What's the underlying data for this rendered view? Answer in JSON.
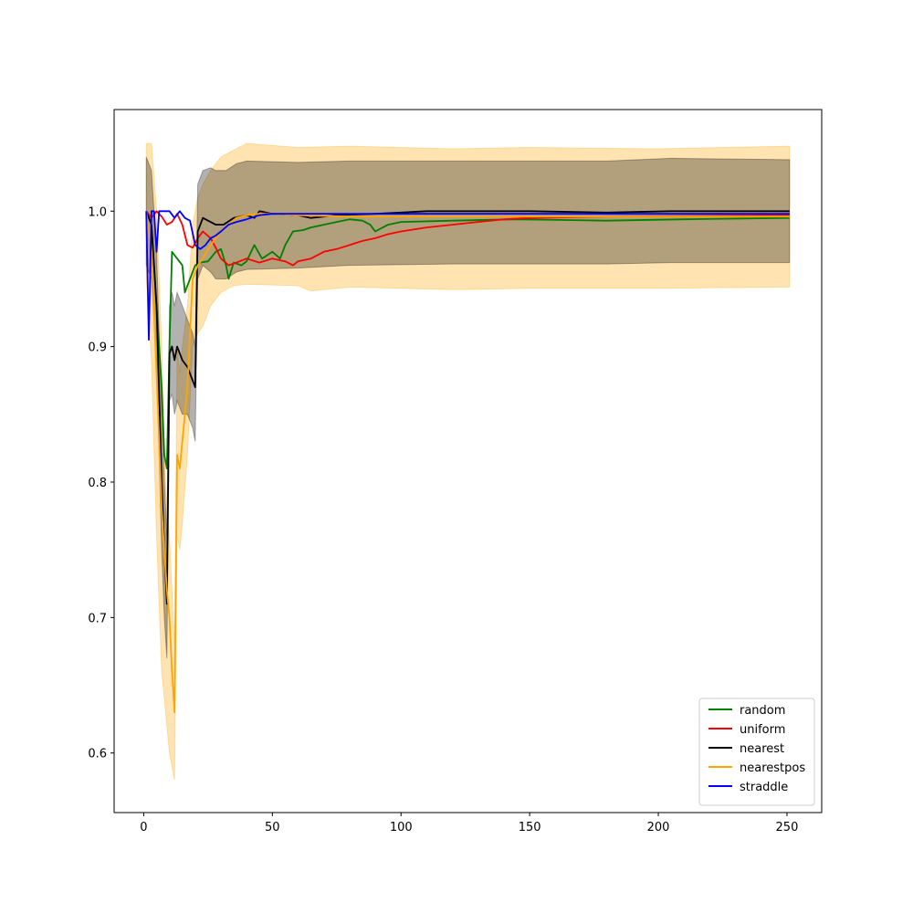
{
  "chart_data": {
    "type": "line",
    "title": "",
    "xlabel": "",
    "ylabel": "",
    "xlim": [
      -11.5,
      263.5
    ],
    "ylim": [
      0.556,
      1.075
    ],
    "x_ticks": [
      0,
      50,
      100,
      150,
      200,
      250
    ],
    "x_tick_labels": [
      "0",
      "50",
      "100",
      "150",
      "200",
      "250"
    ],
    "y_ticks": [
      0.6,
      0.7,
      0.8,
      0.9,
      1.0
    ],
    "y_tick_labels": [
      "0.6",
      "0.7",
      "0.8",
      "0.9",
      "1.0"
    ],
    "grid": false,
    "legend_position": "lower-right",
    "series": [
      {
        "name": "random",
        "color": "#008000",
        "points": [
          [
            1,
            1.0
          ],
          [
            3,
            0.99
          ],
          [
            5,
            0.93
          ],
          [
            7,
            0.87
          ],
          [
            8,
            0.82
          ],
          [
            9,
            0.81
          ],
          [
            10,
            0.9
          ],
          [
            11,
            0.97
          ],
          [
            13,
            0.965
          ],
          [
            15,
            0.96
          ],
          [
            16,
            0.94
          ],
          [
            18,
            0.95
          ],
          [
            20,
            0.96
          ],
          [
            22,
            0.962
          ],
          [
            25,
            0.963
          ],
          [
            28,
            0.97
          ],
          [
            30,
            0.972
          ],
          [
            32,
            0.96
          ],
          [
            33,
            0.95
          ],
          [
            35,
            0.962
          ],
          [
            38,
            0.96
          ],
          [
            40,
            0.963
          ],
          [
            43,
            0.975
          ],
          [
            46,
            0.965
          ],
          [
            50,
            0.97
          ],
          [
            53,
            0.965
          ],
          [
            55,
            0.975
          ],
          [
            58,
            0.985
          ],
          [
            62,
            0.986
          ],
          [
            65,
            0.988
          ],
          [
            70,
            0.99
          ],
          [
            75,
            0.992
          ],
          [
            80,
            0.994
          ],
          [
            85,
            0.993
          ],
          [
            88,
            0.99
          ],
          [
            90,
            0.985
          ],
          [
            95,
            0.99
          ],
          [
            100,
            0.992
          ],
          [
            120,
            0.993
          ],
          [
            145,
            0.994
          ],
          [
            180,
            0.993
          ],
          [
            210,
            0.994
          ],
          [
            251,
            0.995
          ]
        ]
      },
      {
        "name": "uniform",
        "color": "#ff0000",
        "points": [
          [
            1,
            1.0
          ],
          [
            3,
            0.995
          ],
          [
            5,
            1.0
          ],
          [
            7,
            0.996
          ],
          [
            9,
            0.99
          ],
          [
            11,
            0.992
          ],
          [
            13,
            0.998
          ],
          [
            15,
            0.99
          ],
          [
            17,
            0.975
          ],
          [
            19,
            0.973
          ],
          [
            21,
            0.98
          ],
          [
            23,
            0.985
          ],
          [
            26,
            0.98
          ],
          [
            28,
            0.973
          ],
          [
            30,
            0.965
          ],
          [
            33,
            0.96
          ],
          [
            36,
            0.962
          ],
          [
            40,
            0.965
          ],
          [
            45,
            0.962
          ],
          [
            50,
            0.965
          ],
          [
            55,
            0.963
          ],
          [
            58,
            0.96
          ],
          [
            60,
            0.963
          ],
          [
            65,
            0.965
          ],
          [
            70,
            0.97
          ],
          [
            75,
            0.972
          ],
          [
            80,
            0.975
          ],
          [
            85,
            0.978
          ],
          [
            90,
            0.98
          ],
          [
            95,
            0.983
          ],
          [
            100,
            0.985
          ],
          [
            110,
            0.988
          ],
          [
            120,
            0.99
          ],
          [
            130,
            0.992
          ],
          [
            140,
            0.994
          ],
          [
            150,
            0.995
          ],
          [
            180,
            0.996
          ],
          [
            251,
            0.997
          ]
        ]
      },
      {
        "name": "nearest",
        "color": "#000000",
        "points": [
          [
            1,
            1.0
          ],
          [
            3,
            0.99
          ],
          [
            5,
            0.93
          ],
          [
            7,
            0.8
          ],
          [
            8,
            0.75
          ],
          [
            9,
            0.71
          ],
          [
            10,
            0.895
          ],
          [
            11,
            0.9
          ],
          [
            12,
            0.89
          ],
          [
            13,
            0.9
          ],
          [
            14,
            0.895
          ],
          [
            15,
            0.89
          ],
          [
            17,
            0.885
          ],
          [
            19,
            0.875
          ],
          [
            20,
            0.87
          ],
          [
            21,
            0.985
          ],
          [
            23,
            0.995
          ],
          [
            25,
            0.993
          ],
          [
            28,
            0.99
          ],
          [
            31,
            0.99
          ],
          [
            35,
            0.995
          ],
          [
            40,
            0.997
          ],
          [
            43,
            0.995
          ],
          [
            45,
            1.0
          ],
          [
            50,
            0.998
          ],
          [
            60,
            0.997
          ],
          [
            65,
            0.995
          ],
          [
            75,
            0.997
          ],
          [
            90,
            0.998
          ],
          [
            100,
            0.999
          ],
          [
            110,
            1.0
          ],
          [
            150,
            1.0
          ],
          [
            180,
            0.999
          ],
          [
            205,
            1.0
          ],
          [
            251,
            1.0
          ]
        ]
      },
      {
        "name": "nearestpos",
        "color": "#ffa500",
        "points": [
          [
            1,
            1.0
          ],
          [
            3,
            0.97
          ],
          [
            5,
            0.88
          ],
          [
            7,
            0.78
          ],
          [
            9,
            0.72
          ],
          [
            10,
            0.7
          ],
          [
            11,
            0.66
          ],
          [
            12,
            0.63
          ],
          [
            13,
            0.82
          ],
          [
            14,
            0.81
          ],
          [
            15,
            0.83
          ],
          [
            17,
            0.87
          ],
          [
            19,
            0.95
          ],
          [
            21,
            0.96
          ],
          [
            23,
            0.965
          ],
          [
            26,
            0.975
          ],
          [
            28,
            0.98
          ],
          [
            30,
            0.985
          ],
          [
            33,
            0.99
          ],
          [
            36,
            0.995
          ],
          [
            40,
            0.997
          ],
          [
            45,
            0.998
          ],
          [
            50,
            0.998
          ],
          [
            60,
            0.997
          ],
          [
            80,
            0.996
          ],
          [
            120,
            0.996
          ],
          [
            200,
            0.996
          ],
          [
            251,
            0.996
          ]
        ]
      },
      {
        "name": "straddle",
        "color": "#0000ff",
        "points": [
          [
            1,
            1.0
          ],
          [
            2,
            0.905
          ],
          [
            3,
            1.0
          ],
          [
            4,
            1.0
          ],
          [
            5,
            0.97
          ],
          [
            6,
            1.0
          ],
          [
            8,
            1.0
          ],
          [
            10,
            1.0
          ],
          [
            12,
            0.995
          ],
          [
            14,
            1.0
          ],
          [
            16,
            0.995
          ],
          [
            18,
            0.993
          ],
          [
            20,
            0.975
          ],
          [
            22,
            0.972
          ],
          [
            24,
            0.975
          ],
          [
            26,
            0.98
          ],
          [
            28,
            0.982
          ],
          [
            30,
            0.985
          ],
          [
            33,
            0.99
          ],
          [
            36,
            0.992
          ],
          [
            40,
            0.994
          ],
          [
            45,
            0.997
          ],
          [
            50,
            0.998
          ],
          [
            60,
            0.998
          ],
          [
            100,
            0.998
          ],
          [
            200,
            0.998
          ],
          [
            251,
            0.998
          ]
        ]
      }
    ],
    "bands": [
      {
        "of": "nearestpos",
        "color": "#ffa500",
        "opacity": 0.3,
        "upper": [
          [
            1,
            1.05
          ],
          [
            3,
            1.05
          ],
          [
            5,
            1.0
          ],
          [
            7,
            0.9
          ],
          [
            8,
            0.82
          ],
          [
            9,
            0.78
          ],
          [
            10,
            0.76
          ],
          [
            11,
            0.72
          ],
          [
            12,
            0.68
          ],
          [
            13,
            0.9
          ],
          [
            14,
            0.88
          ],
          [
            15,
            0.9
          ],
          [
            17,
            0.93
          ],
          [
            19,
            0.99
          ],
          [
            21,
            1.01
          ],
          [
            23,
            1.02
          ],
          [
            26,
            1.03
          ],
          [
            30,
            1.04
          ],
          [
            35,
            1.045
          ],
          [
            40,
            1.05
          ],
          [
            60,
            1.047
          ],
          [
            80,
            1.048
          ],
          [
            120,
            1.046
          ],
          [
            150,
            1.047
          ],
          [
            200,
            1.046
          ],
          [
            251,
            1.048
          ]
        ],
        "lower": [
          [
            1,
            0.95
          ],
          [
            3,
            0.89
          ],
          [
            5,
            0.76
          ],
          [
            7,
            0.66
          ],
          [
            8,
            0.64
          ],
          [
            9,
            0.62
          ],
          [
            10,
            0.6
          ],
          [
            11,
            0.59
          ],
          [
            12,
            0.58
          ],
          [
            13,
            0.76
          ],
          [
            14,
            0.75
          ],
          [
            15,
            0.77
          ],
          [
            17,
            0.82
          ],
          [
            19,
            0.9
          ],
          [
            21,
            0.91
          ],
          [
            23,
            0.915
          ],
          [
            26,
            0.93
          ],
          [
            30,
            0.94
          ],
          [
            35,
            0.945
          ],
          [
            40,
            0.946
          ],
          [
            60,
            0.945
          ],
          [
            65,
            0.941
          ],
          [
            80,
            0.944
          ],
          [
            120,
            0.942
          ],
          [
            150,
            0.943
          ],
          [
            200,
            0.943
          ],
          [
            251,
            0.944
          ]
        ]
      },
      {
        "of": "nearest",
        "color": "#000000",
        "opacity": 0.3,
        "upper": [
          [
            1,
            1.04
          ],
          [
            3,
            1.03
          ],
          [
            5,
            0.97
          ],
          [
            7,
            0.85
          ],
          [
            8,
            0.8
          ],
          [
            9,
            0.76
          ],
          [
            10,
            0.93
          ],
          [
            11,
            0.94
          ],
          [
            12,
            0.93
          ],
          [
            13,
            0.94
          ],
          [
            14,
            0.935
          ],
          [
            15,
            0.93
          ],
          [
            17,
            0.92
          ],
          [
            19,
            0.91
          ],
          [
            20,
            0.9
          ],
          [
            21,
            1.02
          ],
          [
            23,
            1.03
          ],
          [
            26,
            1.032
          ],
          [
            28,
            1.03
          ],
          [
            32,
            1.03
          ],
          [
            36,
            1.035
          ],
          [
            40,
            1.037
          ],
          [
            60,
            1.036
          ],
          [
            80,
            1.037
          ],
          [
            120,
            1.037
          ],
          [
            180,
            1.037
          ],
          [
            205,
            1.039
          ],
          [
            251,
            1.038
          ]
        ],
        "lower": [
          [
            1,
            0.96
          ],
          [
            3,
            0.95
          ],
          [
            5,
            0.89
          ],
          [
            7,
            0.75
          ],
          [
            8,
            0.7
          ],
          [
            9,
            0.67
          ],
          [
            10,
            0.86
          ],
          [
            11,
            0.865
          ],
          [
            12,
            0.85
          ],
          [
            13,
            0.86
          ],
          [
            14,
            0.855
          ],
          [
            15,
            0.85
          ],
          [
            17,
            0.85
          ],
          [
            19,
            0.84
          ],
          [
            20,
            0.83
          ],
          [
            21,
            0.95
          ],
          [
            23,
            0.96
          ],
          [
            26,
            0.955
          ],
          [
            28,
            0.95
          ],
          [
            32,
            0.95
          ],
          [
            36,
            0.955
          ],
          [
            40,
            0.957
          ],
          [
            60,
            0.958
          ],
          [
            80,
            0.96
          ],
          [
            120,
            0.961
          ],
          [
            180,
            0.961
          ],
          [
            205,
            0.962
          ],
          [
            251,
            0.962
          ]
        ]
      }
    ]
  }
}
